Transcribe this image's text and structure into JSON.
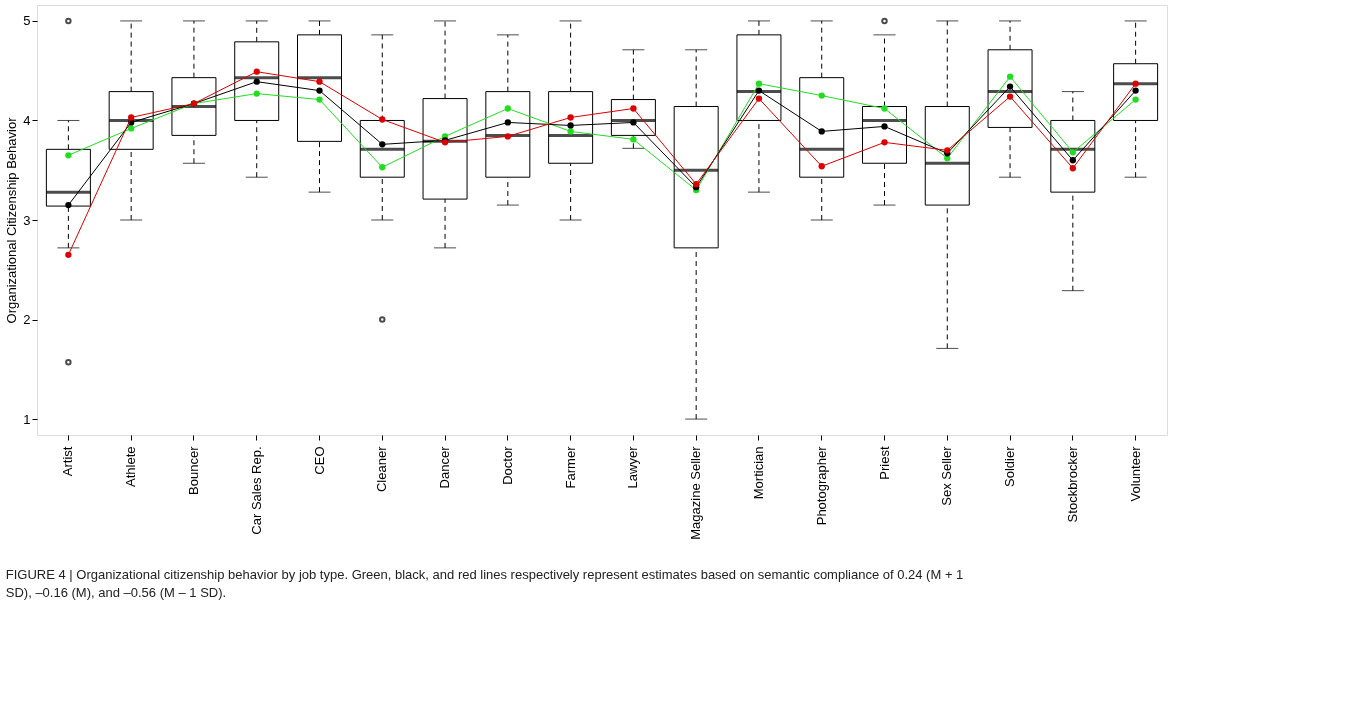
{
  "chart_data": {
    "type": "box",
    "ylabel": "Organizational Citizenship Behavior",
    "categories": [
      "Artist",
      "Athlete",
      "Bouncer",
      "Car Sales Rep.",
      "CEO",
      "Cleaner",
      "Dancer",
      "Doctor",
      "Farmer",
      "Lawyer",
      "Magazine Seller",
      "Mortician",
      "Photographer",
      "Priest",
      "Sex Seller",
      "Soldier",
      "Stockbrocker",
      "Volunteer"
    ],
    "boxes": [
      {
        "low": 2.72,
        "q1": 3.14,
        "median": 3.28,
        "q3": 3.71,
        "high": 4.0,
        "outliers": [
          5.0,
          1.57
        ]
      },
      {
        "low": 3.0,
        "q1": 3.71,
        "median": 4.0,
        "q3": 4.29,
        "high": 5.0
      },
      {
        "low": 3.57,
        "q1": 3.85,
        "median": 4.14,
        "q3": 4.43,
        "high": 5.0
      },
      {
        "low": 3.43,
        "q1": 4.0,
        "median": 4.43,
        "q3": 4.79,
        "high": 5.0
      },
      {
        "low": 3.28,
        "q1": 3.79,
        "median": 4.43,
        "q3": 4.86,
        "high": 5.0
      },
      {
        "low": 3.0,
        "q1": 3.43,
        "median": 3.71,
        "q3": 4.0,
        "high": 4.86,
        "outliers": [
          2.0
        ]
      },
      {
        "low": 2.72,
        "q1": 3.21,
        "median": 3.79,
        "q3": 4.22,
        "high": 5.0
      },
      {
        "low": 3.15,
        "q1": 3.43,
        "median": 3.85,
        "q3": 4.29,
        "high": 4.86
      },
      {
        "low": 3.0,
        "q1": 3.57,
        "median": 3.85,
        "q3": 4.29,
        "high": 5.0
      },
      {
        "low": 3.72,
        "q1": 3.85,
        "median": 4.0,
        "q3": 4.21,
        "high": 4.71
      },
      {
        "low": 1.0,
        "q1": 2.72,
        "median": 3.5,
        "q3": 4.14,
        "high": 4.71
      },
      {
        "low": 3.28,
        "q1": 4.0,
        "median": 4.29,
        "q3": 4.86,
        "high": 5.0
      },
      {
        "low": 3.0,
        "q1": 3.43,
        "median": 3.71,
        "q3": 4.43,
        "high": 5.0
      },
      {
        "low": 3.15,
        "q1": 3.57,
        "median": 4.0,
        "q3": 4.14,
        "high": 4.86,
        "outliers": [
          5.0
        ]
      },
      {
        "low": 1.71,
        "q1": 3.15,
        "median": 3.57,
        "q3": 4.14,
        "high": 5.0
      },
      {
        "low": 3.43,
        "q1": 3.93,
        "median": 4.29,
        "q3": 4.71,
        "high": 5.0
      },
      {
        "low": 2.29,
        "q1": 3.28,
        "median": 3.71,
        "q3": 4.0,
        "high": 4.29
      },
      {
        "low": 3.43,
        "q1": 4.0,
        "median": 4.37,
        "q3": 4.57,
        "high": 5.0
      }
    ],
    "series": [
      {
        "type": "line",
        "color": "#22dd22",
        "values": [
          3.65,
          3.92,
          4.17,
          4.27,
          4.21,
          3.53,
          3.84,
          4.12,
          3.89,
          3.81,
          3.3,
          4.37,
          4.25,
          4.12,
          3.62,
          4.44,
          3.68,
          4.21
        ]
      },
      {
        "type": "line",
        "color": "#000000",
        "values": [
          3.15,
          3.98,
          4.17,
          4.39,
          4.3,
          3.76,
          3.8,
          3.98,
          3.95,
          3.98,
          3.33,
          4.3,
          3.89,
          3.94,
          3.67,
          4.34,
          3.6,
          4.3
        ]
      },
      {
        "type": "line",
        "color": "#dd0000",
        "values": [
          2.65,
          4.03,
          4.17,
          4.49,
          4.39,
          4.01,
          3.78,
          3.84,
          4.03,
          4.12,
          3.36,
          4.22,
          3.54,
          3.78,
          3.7,
          4.24,
          3.52,
          4.37
        ]
      }
    ],
    "ylim": [
      0.84,
      5.16
    ],
    "yticks": [
      1,
      2,
      3,
      4,
      5
    ],
    "marker": "circle",
    "line_style": "solid",
    "annotations": [
      "FIGURE 4 | Organizational citizenship behavior by job type. Green, black, and red lines respectively represent estimates based on semantic compliance of 0.24 (M + 1 SD), –0.16 (M), and –0.56 (M – 1 SD)."
    ]
  }
}
